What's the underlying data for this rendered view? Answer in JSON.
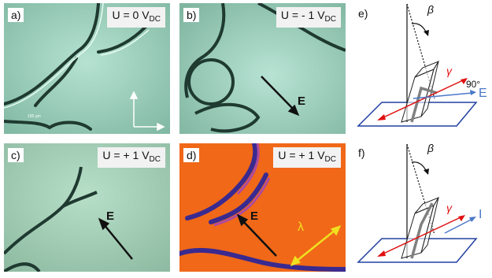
{
  "panels": [
    {
      "id": "a",
      "label": "a)",
      "voltage": "U = 0 V",
      "sub": "DC"
    },
    {
      "id": "b",
      "label": "b)",
      "voltage": "U = - 1 V",
      "sub": "DC",
      "field": "E"
    },
    {
      "id": "c",
      "label": "c)",
      "voltage": "U = + 1 V",
      "sub": "DC",
      "field": "E"
    },
    {
      "id": "d",
      "label": "d)",
      "voltage": "U = + 1 V",
      "sub": "DC",
      "field": "E",
      "wave": "λ"
    }
  ],
  "scale_bar": "100 μm",
  "diagrams": [
    {
      "id": "e",
      "label": "e)",
      "beta": "β",
      "gamma": "γ",
      "angle": "90°",
      "field": "E"
    },
    {
      "id": "f",
      "label": "f)",
      "beta": "β",
      "gamma": "γ",
      "field": "I"
    }
  ],
  "colors": {
    "arrow_red": "#e01010",
    "arrow_blue": "#4a78c8",
    "plane": "#2040a0",
    "lambda": "#f0e020",
    "micro_green": "#9fd0bd",
    "micro_orange": "#f06818"
  }
}
